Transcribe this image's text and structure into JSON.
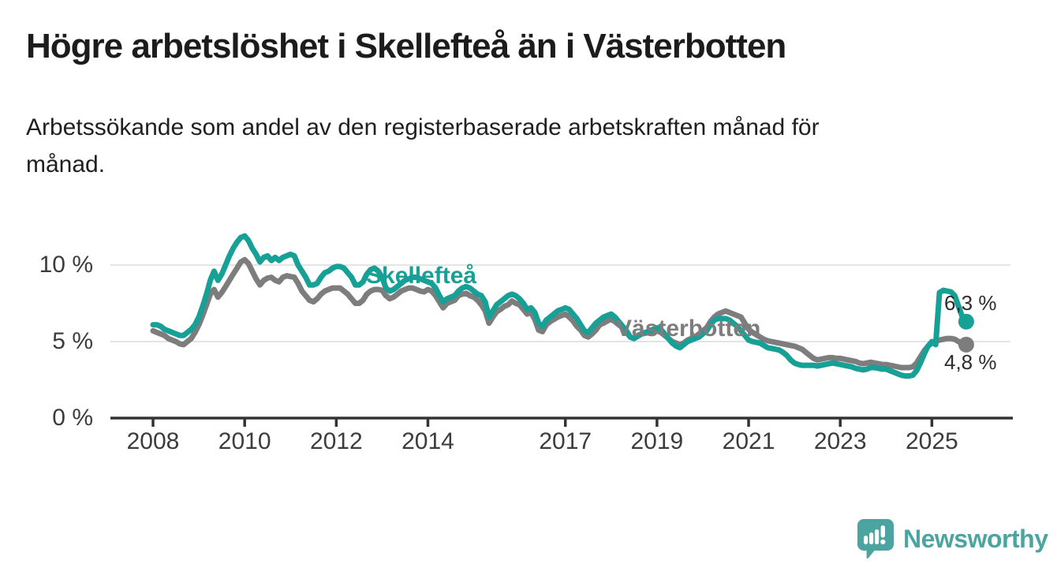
{
  "header": {
    "title": "Högre arbetslöshet i Skellefteå än i Västerbotten",
    "subtitle_lines": [
      "Arbetssökande som andel av den registerbaserade arbetskraften månad för",
      "månad."
    ]
  },
  "chart_data": {
    "type": "line",
    "frequency": "monthly",
    "x_start": "2008-01",
    "x_end": "2025-10",
    "ylim": [
      0,
      12.5
    ],
    "grid": "horizontal",
    "y_ticks": [
      {
        "value": 0,
        "label": "0 %"
      },
      {
        "value": 5,
        "label": "5 %"
      },
      {
        "value": 10,
        "label": "10 %"
      }
    ],
    "gridline_values": [
      5,
      10
    ],
    "x_ticks": [
      {
        "year": 2008,
        "label": "2008"
      },
      {
        "year": 2010,
        "label": "2010"
      },
      {
        "year": 2012,
        "label": "2012"
      },
      {
        "year": 2014,
        "label": "2014"
      },
      {
        "year": 2017,
        "label": "2017"
      },
      {
        "year": 2019,
        "label": "2019"
      },
      {
        "year": 2021,
        "label": "2021"
      },
      {
        "year": 2023,
        "label": "2023"
      },
      {
        "year": 2025,
        "label": "2025"
      }
    ],
    "series": [
      {
        "name": "Västerbotten",
        "color": "#7d7d7d",
        "end_label": "4,8 %",
        "end_value": 4.8,
        "values": [
          5.7,
          5.6,
          5.5,
          5.4,
          5.2,
          5.1,
          5.0,
          4.85,
          4.8,
          5.0,
          5.2,
          5.6,
          6.1,
          6.7,
          7.4,
          8.1,
          8.4,
          7.9,
          8.2,
          8.6,
          9.0,
          9.4,
          9.8,
          10.2,
          10.35,
          10.1,
          9.6,
          9.1,
          8.7,
          9.0,
          9.15,
          9.2,
          9.0,
          8.9,
          9.2,
          9.3,
          9.25,
          9.2,
          8.8,
          8.3,
          8.0,
          7.7,
          7.6,
          7.8,
          8.1,
          8.3,
          8.4,
          8.5,
          8.5,
          8.5,
          8.3,
          8.1,
          7.8,
          7.5,
          7.5,
          7.7,
          8.1,
          8.3,
          8.4,
          8.4,
          8.35,
          8.0,
          7.8,
          7.9,
          8.1,
          8.3,
          8.4,
          8.5,
          8.5,
          8.4,
          8.3,
          8.25,
          8.4,
          8.3,
          8.0,
          7.6,
          7.2,
          7.5,
          7.6,
          7.7,
          8.0,
          8.1,
          8.15,
          8.0,
          7.9,
          7.7,
          7.4,
          7.0,
          6.2,
          6.6,
          6.95,
          7.1,
          7.3,
          7.4,
          7.65,
          7.5,
          7.4,
          7.1,
          6.8,
          6.9,
          6.45,
          5.75,
          5.65,
          6.1,
          6.3,
          6.45,
          6.6,
          6.7,
          6.8,
          6.6,
          6.35,
          6.0,
          5.75,
          5.4,
          5.3,
          5.5,
          5.75,
          6.1,
          6.2,
          6.35,
          6.45,
          6.3,
          6.1,
          5.9,
          5.6,
          5.3,
          5.2,
          5.35,
          5.5,
          5.55,
          5.6,
          5.65,
          5.7,
          5.6,
          5.4,
          5.2,
          5.0,
          4.9,
          4.8,
          4.9,
          5.1,
          5.2,
          5.3,
          5.5,
          5.7,
          5.9,
          6.3,
          6.6,
          6.8,
          6.9,
          7.0,
          6.9,
          6.8,
          6.7,
          6.6,
          6.2,
          5.8,
          5.6,
          5.45,
          5.3,
          5.15,
          5.05,
          5.0,
          4.95,
          4.9,
          4.85,
          4.8,
          4.75,
          4.7,
          4.6,
          4.5,
          4.3,
          4.1,
          3.9,
          3.8,
          3.85,
          3.9,
          3.95,
          3.95,
          3.9,
          3.9,
          3.85,
          3.8,
          3.75,
          3.7,
          3.6,
          3.55,
          3.6,
          3.65,
          3.6,
          3.55,
          3.5,
          3.5,
          3.45,
          3.4,
          3.35,
          3.3,
          3.3,
          3.3,
          3.35,
          3.6,
          4.0,
          4.4,
          4.7,
          4.9,
          5.0,
          5.1,
          5.15,
          5.2,
          5.2,
          5.15,
          5.0,
          4.85,
          4.8
        ]
      },
      {
        "name": "Skellefteå",
        "color": "#17a096",
        "end_label": "6,3 %",
        "end_value": 6.3,
        "values": [
          6.1,
          6.1,
          6.0,
          5.8,
          5.7,
          5.6,
          5.5,
          5.4,
          5.4,
          5.6,
          5.8,
          6.1,
          6.6,
          7.3,
          8.1,
          9.0,
          9.6,
          9.0,
          9.4,
          10.0,
          10.6,
          11.1,
          11.5,
          11.8,
          11.9,
          11.6,
          11.1,
          10.7,
          10.2,
          10.5,
          10.6,
          10.3,
          10.5,
          10.3,
          10.5,
          10.6,
          10.7,
          10.6,
          10.0,
          9.6,
          9.2,
          8.7,
          8.7,
          8.8,
          9.2,
          9.5,
          9.6,
          9.8,
          9.9,
          9.9,
          9.8,
          9.5,
          9.2,
          8.7,
          8.7,
          8.9,
          9.4,
          9.7,
          9.8,
          9.6,
          9.2,
          8.5,
          8.3,
          8.4,
          8.6,
          8.8,
          9.0,
          9.1,
          9.2,
          9.2,
          9.1,
          9.0,
          8.9,
          8.8,
          8.5,
          8.0,
          7.6,
          7.8,
          7.9,
          8.0,
          8.3,
          8.5,
          8.6,
          8.5,
          8.3,
          8.1,
          8.0,
          7.6,
          6.6,
          7.0,
          7.4,
          7.6,
          7.8,
          8.0,
          8.1,
          8.0,
          7.8,
          7.5,
          7.1,
          7.2,
          6.9,
          6.2,
          6.0,
          6.4,
          6.6,
          6.8,
          7.0,
          7.1,
          7.2,
          7.1,
          6.8,
          6.5,
          6.1,
          5.7,
          5.6,
          5.9,
          6.2,
          6.4,
          6.6,
          6.7,
          6.8,
          6.6,
          6.3,
          6.0,
          5.7,
          5.3,
          5.2,
          5.4,
          5.5,
          5.6,
          5.7,
          5.8,
          5.9,
          5.8,
          5.5,
          5.2,
          4.9,
          4.7,
          4.6,
          4.8,
          5.0,
          5.1,
          5.2,
          5.3,
          5.5,
          5.7,
          6.1,
          6.4,
          6.5,
          6.5,
          6.5,
          6.4,
          6.2,
          6.0,
          5.7,
          5.4,
          5.1,
          5.0,
          4.95,
          4.9,
          4.75,
          4.6,
          4.55,
          4.5,
          4.45,
          4.3,
          4.1,
          3.8,
          3.6,
          3.5,
          3.45,
          3.45,
          3.45,
          3.45,
          3.4,
          3.45,
          3.5,
          3.55,
          3.6,
          3.55,
          3.5,
          3.45,
          3.4,
          3.35,
          3.25,
          3.2,
          3.15,
          3.2,
          3.3,
          3.3,
          3.25,
          3.2,
          3.2,
          3.1,
          3.0,
          2.9,
          2.8,
          2.75,
          2.75,
          2.8,
          3.1,
          3.6,
          4.2,
          4.7,
          5.0,
          4.8,
          8.2,
          8.35,
          8.3,
          8.25,
          8.0,
          7.3,
          6.6,
          6.3
        ]
      }
    ]
  },
  "footer": {
    "brand": "Newsworthy",
    "brand_color": "#4BA49F"
  },
  "colors": {
    "skelleftea": "#17a096",
    "vasterbotten": "#7d7d7d",
    "axis": "#333333",
    "gridline": "#dcdcdc"
  }
}
